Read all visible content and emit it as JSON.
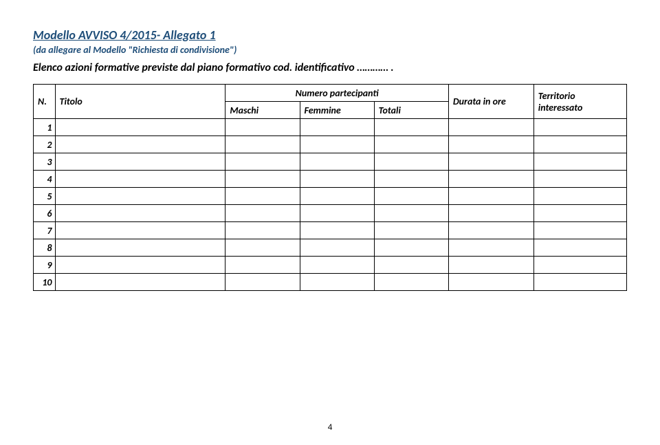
{
  "header": {
    "title": "Modello AVVISO 4/2015- Allegato 1",
    "subtitle": "(da allegare al Modello \"Richiesta di condivisione\")",
    "description": "Elenco azioni formative previste dal piano formativo  cod. identificativo ………… ."
  },
  "table": {
    "columns": {
      "n": "N.",
      "titolo": "Titolo",
      "partecipanti_group": "Numero partecipanti",
      "maschi": "Maschi",
      "femmine": "Femmine",
      "totali": "Totali",
      "durata": "Durata in ore",
      "territorio_line1": "Territorio",
      "territorio_line2": "interessato"
    },
    "row_count": 10
  },
  "footer": {
    "page_number": "4"
  },
  "styling": {
    "title_color": "#1f4e79",
    "text_color": "#000000",
    "border_color": "#000000",
    "background_color": "#ffffff",
    "title_fontsize": 18,
    "subtitle_fontsize": 14,
    "desc_fontsize": 16,
    "cell_fontsize": 14,
    "font_family": "Calibri",
    "col_widths": {
      "n": 28,
      "titolo": 220,
      "sub": 96,
      "durata": 110,
      "territorio": 120
    }
  }
}
